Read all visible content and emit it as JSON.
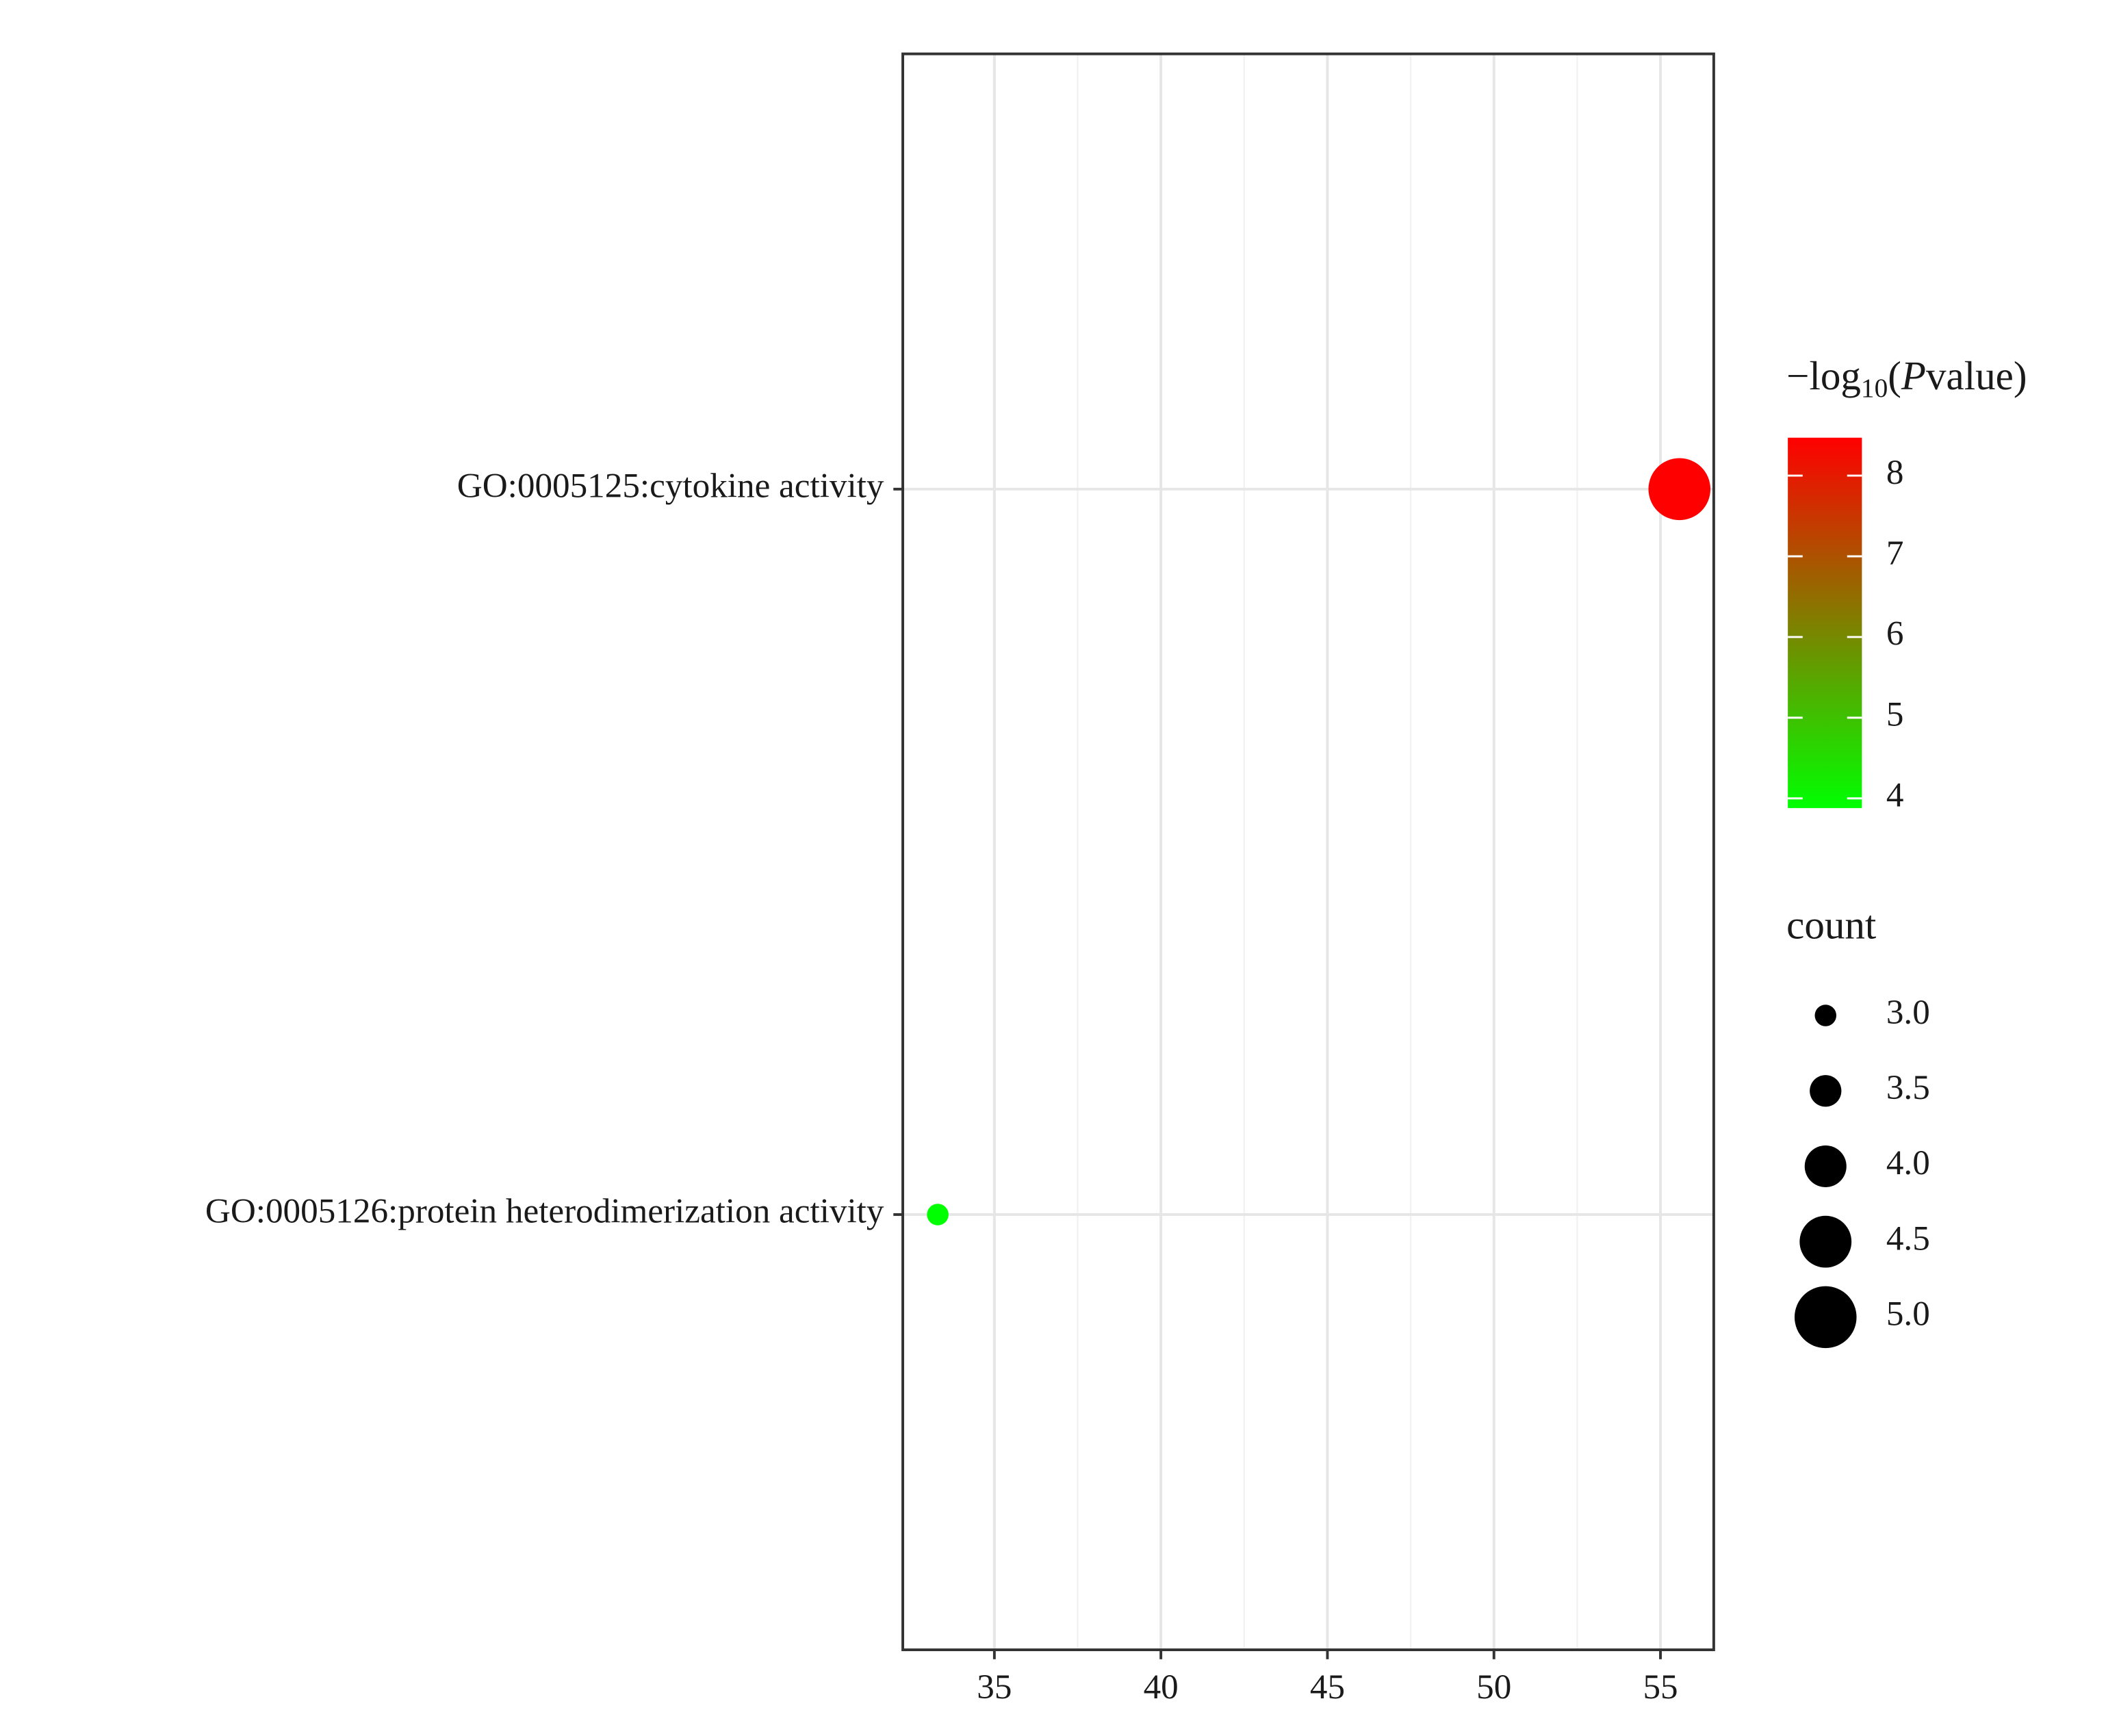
{
  "chart_data": {
    "type": "dot",
    "categories": [
      "GO:0005126:protein heterodimerization activity",
      "GO:0005125:cytokine activity"
    ],
    "values": [
      33.3,
      55.57
    ],
    "color_values": [
      3.88,
      8.47
    ],
    "size_values": [
      3,
      5
    ],
    "xlim": [
      32.25,
      56.6
    ],
    "xticks": [
      35,
      40,
      45,
      50,
      55
    ],
    "grid": true,
    "color_legend": {
      "title_parts": [
        "−log",
        "10",
        "(",
        "P",
        "value)"
      ],
      "lim": [
        3.88,
        8.47
      ],
      "ticks": [
        4,
        5,
        6,
        7,
        8
      ],
      "low_color": "#00ff00",
      "high_color": "#ff0000"
    },
    "size_legend": {
      "title": "count",
      "ticks": [
        {
          "value": 3,
          "label": "3.0"
        },
        {
          "value": 3.5,
          "label": "3.5"
        },
        {
          "value": 4,
          "label": "4.0"
        },
        {
          "value": 4.5,
          "label": "4.5"
        },
        {
          "value": 5,
          "label": "5.0"
        }
      ]
    }
  }
}
